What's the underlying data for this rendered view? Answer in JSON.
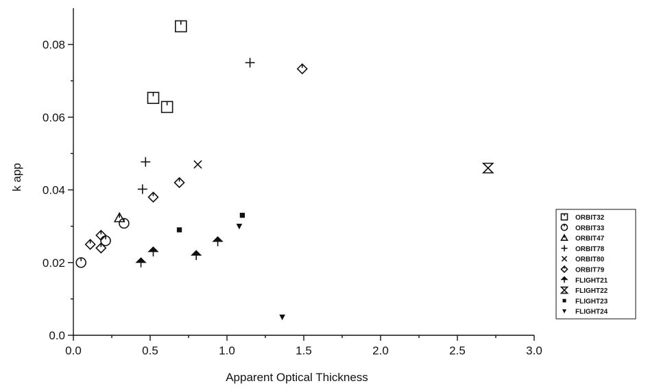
{
  "chart_data": {
    "type": "scatter",
    "xlabel": "Apparent Optical Thickness",
    "ylabel": "k app",
    "xlim": [
      0,
      3.0
    ],
    "ylim": [
      0,
      0.09
    ],
    "xticks": [
      "0.0",
      "0.5",
      "1.0",
      "1.5",
      "2.0",
      "2.5",
      "3.0"
    ],
    "yticks": [
      "0.0",
      "0.02",
      "0.04",
      "0.06",
      "0.08"
    ],
    "grid": false,
    "legend_position": "right",
    "series": [
      {
        "name": "ORBIT32",
        "marker": "square-tick",
        "points": [
          [
            0.7,
            0.085
          ],
          [
            0.52,
            0.0653
          ],
          [
            0.61,
            0.0628
          ]
        ]
      },
      {
        "name": "ORBIT33",
        "marker": "circle-tick",
        "points": [
          [
            0.05,
            0.02
          ],
          [
            0.21,
            0.026
          ],
          [
            0.33,
            0.0308
          ]
        ]
      },
      {
        "name": "ORBIT47",
        "marker": "triangle-tick",
        "points": [
          [
            0.3,
            0.0323
          ]
        ]
      },
      {
        "name": "ORBIT78",
        "marker": "plus",
        "points": [
          [
            1.15,
            0.075
          ],
          [
            0.47,
            0.0477
          ],
          [
            0.45,
            0.0402
          ]
        ]
      },
      {
        "name": "ORBIT80",
        "marker": "cross",
        "points": [
          [
            0.81,
            0.047
          ]
        ]
      },
      {
        "name": "ORBIT79",
        "marker": "diamond-tick",
        "points": [
          [
            1.49,
            0.0733
          ],
          [
            0.69,
            0.042
          ],
          [
            0.52,
            0.038
          ],
          [
            0.11,
            0.025
          ],
          [
            0.18,
            0.0275
          ],
          [
            0.18,
            0.024
          ]
        ]
      },
      {
        "name": "FLIGHT21",
        "marker": "arrow-up",
        "points": [
          [
            0.44,
            0.02
          ],
          [
            0.52,
            0.023
          ],
          [
            0.8,
            0.022
          ],
          [
            0.94,
            0.0258
          ]
        ]
      },
      {
        "name": "FLIGHT22",
        "marker": "hourglass",
        "points": [
          [
            2.7,
            0.046
          ]
        ]
      },
      {
        "name": "FLIGHT23",
        "marker": "square-filled",
        "points": [
          [
            0.69,
            0.029
          ],
          [
            1.1,
            0.033
          ]
        ]
      },
      {
        "name": "FLIGHT24",
        "marker": "triangle-down",
        "points": [
          [
            1.08,
            0.03
          ],
          [
            1.36,
            0.005
          ]
        ]
      }
    ]
  }
}
